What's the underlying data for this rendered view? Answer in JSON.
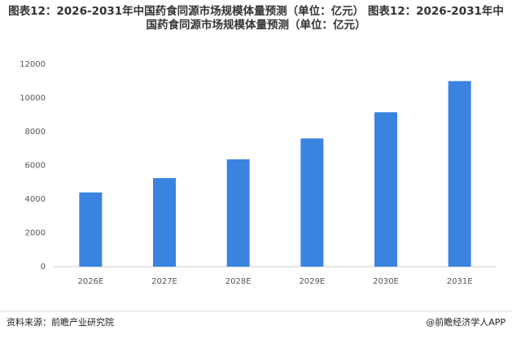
{
  "chart_data": {
    "type": "bar",
    "title": "图表12：2026-2031年中国药食同源市场规模体量预测（单位：亿元） 图表12：2026-2031年中国药食同源市场规模体量预测（单位：亿元）",
    "categories": [
      "2026E",
      "2027E",
      "2028E",
      "2029E",
      "2030E",
      "2031E"
    ],
    "values": [
      4400,
      5250,
      6360,
      7600,
      9150,
      11000
    ],
    "color": "#3a83e0",
    "ylim": [
      0,
      12000
    ],
    "yticks": [
      0,
      2000,
      4000,
      6000,
      8000,
      10000,
      12000
    ],
    "grid": false
  },
  "footer": {
    "source": "资料来源：前瞻产业研究院",
    "brand": "@前瞻经济学人APP"
  }
}
